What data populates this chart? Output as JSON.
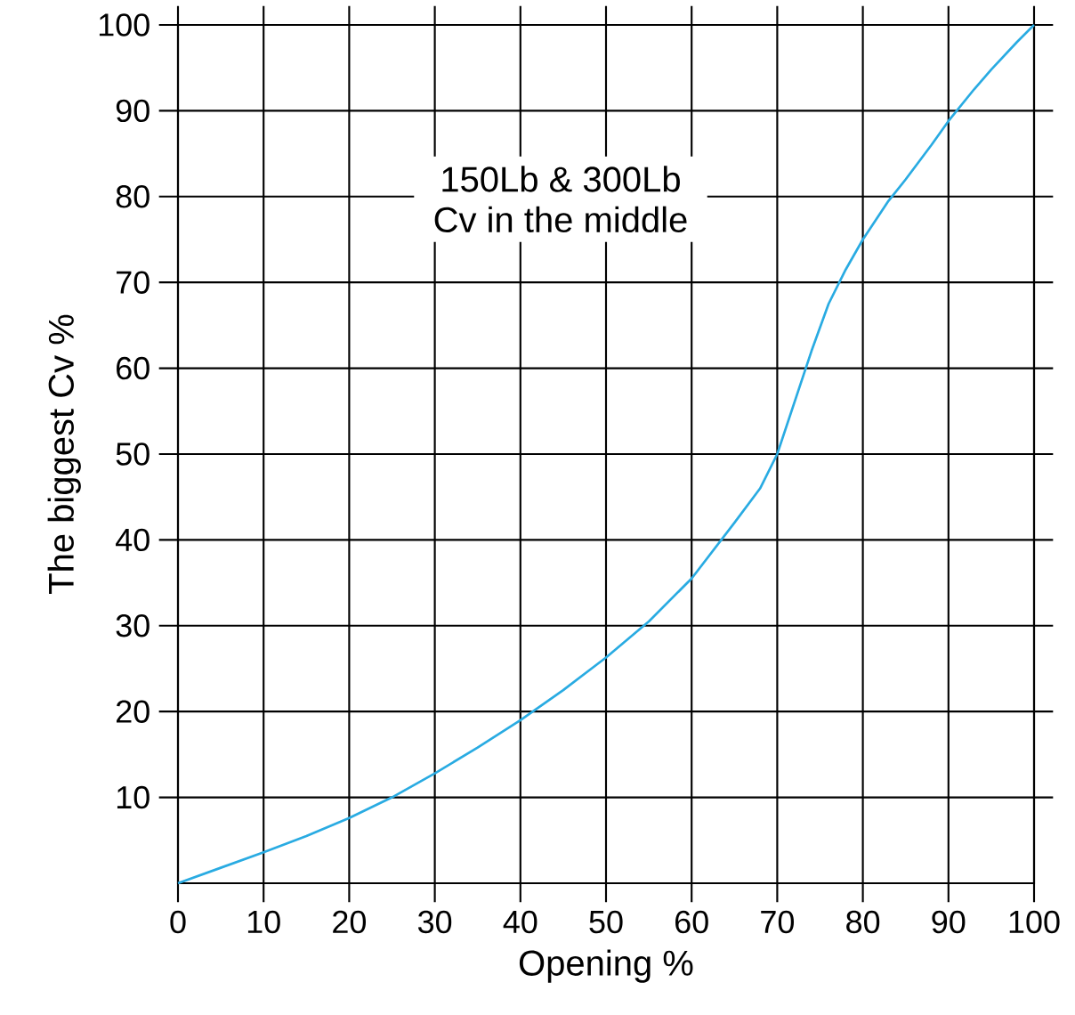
{
  "chart_data": {
    "type": "line",
    "xlabel": "Opening %",
    "ylabel": "The biggest Cv %",
    "annotations": [
      "150Lb & 300Lb",
      "Cv in the middle"
    ],
    "x": [
      0,
      5,
      10,
      15,
      20,
      25,
      30,
      35,
      40,
      45,
      50,
      55,
      60,
      65,
      68,
      70,
      72,
      74,
      76,
      78,
      80,
      83,
      85,
      88,
      90,
      93,
      95,
      98,
      100
    ],
    "series": [
      {
        "color": "#29abe2",
        "values": [
          0,
          1.8,
          3.6,
          5.5,
          7.6,
          10,
          12.8,
          15.8,
          19,
          22.5,
          26.3,
          30.5,
          35.5,
          42,
          46,
          50,
          56,
          62,
          67.5,
          71.5,
          75,
          79.5,
          82,
          86,
          88.8,
          92.5,
          94.8,
          98,
          100
        ]
      }
    ],
    "xlim": [
      0,
      100
    ],
    "ylim": [
      0,
      100
    ],
    "xticks": [
      0,
      10,
      20,
      30,
      40,
      50,
      60,
      70,
      80,
      90,
      100
    ],
    "yticks": [
      10,
      20,
      30,
      40,
      50,
      60,
      70,
      80,
      90,
      100
    ],
    "grid": true,
    "marker": "none",
    "line_style": "solid"
  }
}
